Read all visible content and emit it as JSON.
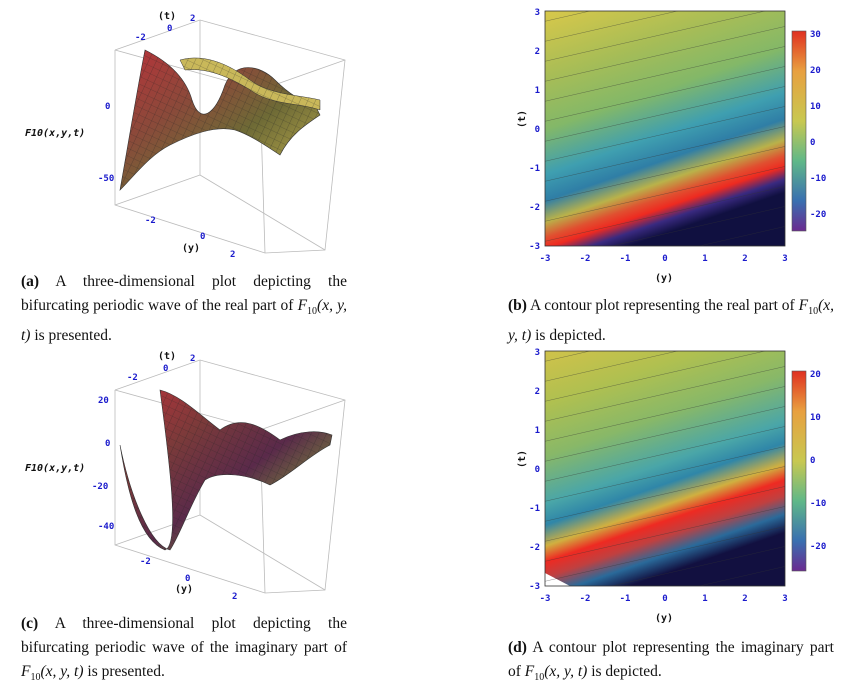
{
  "figures": [
    {
      "id": "a",
      "kind": "3d",
      "axis_labels": {
        "z": "F10(x,y,t)",
        "t": "(t)",
        "y": "(y)"
      },
      "t_ticks": [
        "-2",
        "0",
        "2"
      ],
      "y_ticks": [
        "-2",
        "0",
        "2"
      ],
      "z_ticks": [
        "0",
        "-50"
      ],
      "caption": {
        "label": "(a)",
        "before": "A three-dimensional plot depicting the bifurcating periodic wave of the real part of ",
        "func": "F",
        "sub": "10",
        "args": "(x, y, t)",
        "after": " is presented."
      }
    },
    {
      "id": "b",
      "kind": "contour",
      "axis_labels": {
        "x": "(y)",
        "y": "(t)"
      },
      "x_ticks": [
        "-3",
        "-2",
        "-1",
        "0",
        "1",
        "2",
        "3"
      ],
      "y_ticks": [
        "3",
        "2",
        "1",
        "0",
        "-1",
        "-2",
        "-3"
      ],
      "legend_ticks": [
        "30",
        "20",
        "10",
        "0",
        "-10",
        "-20"
      ],
      "caption": {
        "label": "(b)",
        "before": "A contour plot representing the real part of ",
        "func": "F",
        "sub": "10",
        "args": "(x, y, t)",
        "after": " is depicted."
      }
    },
    {
      "id": "c",
      "kind": "3d",
      "axis_labels": {
        "z": "F10(x,y,t)",
        "t": "(t)",
        "y": "(y)"
      },
      "t_ticks": [
        "-2",
        "0",
        "2"
      ],
      "y_ticks": [
        "-2",
        "0",
        "2"
      ],
      "z_ticks": [
        "20",
        "0",
        "-20",
        "-40"
      ],
      "caption": {
        "label": "(c)",
        "before": "A three-dimensional plot depicting the bifurcating periodic wave of the imaginary part of ",
        "func": "F",
        "sub": "10",
        "args": "(x, y, t)",
        "after": " is presented."
      }
    },
    {
      "id": "d",
      "kind": "contour",
      "axis_labels": {
        "x": "(y)",
        "y": "(t)"
      },
      "x_ticks": [
        "-3",
        "-2",
        "-1",
        "0",
        "1",
        "2",
        "3"
      ],
      "y_ticks": [
        "3",
        "2",
        "1",
        "0",
        "-1",
        "-2",
        "-3"
      ],
      "legend_ticks": [
        "20",
        "10",
        "0",
        "-10",
        "-20"
      ],
      "caption": {
        "label": "(d)",
        "before": "A contour plot representing the imaginary part of ",
        "func": "F",
        "sub": "10",
        "args": "(x, y, t)",
        "after": " is depicted."
      }
    }
  ]
}
